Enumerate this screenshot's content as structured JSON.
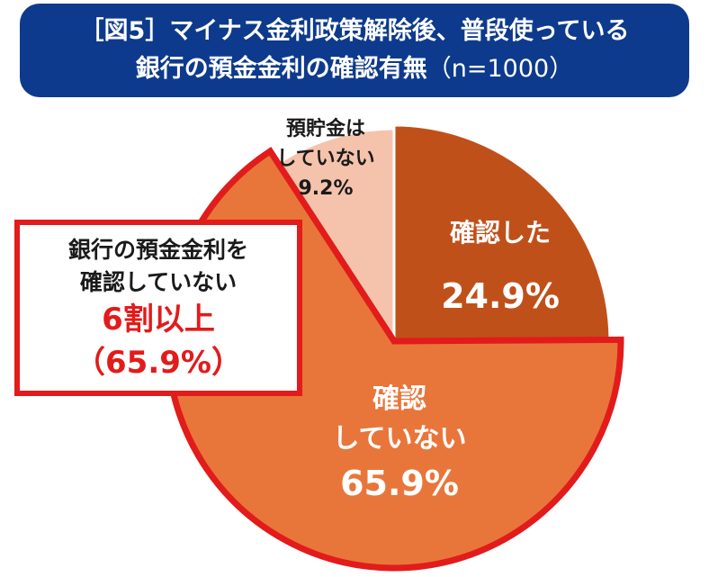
{
  "title": {
    "line1": "［図5］マイナス金利政策解除後、普段使っている",
    "line2_main": "銀行の預金金利の確認有無",
    "line2_sub": "（n=1000）"
  },
  "callout": {
    "line1": "銀行の預金金利を",
    "line2": "確認していない",
    "line3": "6割以上",
    "line4": "（65.9%）"
  },
  "chart_data": {
    "type": "pie",
    "title": "［図5］マイナス金利政策解除後、普段使っている銀行の預金金利の確認有無（n=1000）",
    "slices": [
      {
        "label_lines": [
          "確認した"
        ],
        "value_label": "24.9%",
        "value": 24.9,
        "color": "#c0501a"
      },
      {
        "label_lines": [
          "確認",
          "していない"
        ],
        "value_label": "65.9%",
        "value": 65.9,
        "color": "#e8763a"
      },
      {
        "label_lines": [
          "預貯金は",
          "していない"
        ],
        "value_label": "9.2%",
        "value": 9.2,
        "color": "#f5c3ac"
      }
    ],
    "highlight_slice": 1,
    "highlight_color": "#e21b1b"
  }
}
